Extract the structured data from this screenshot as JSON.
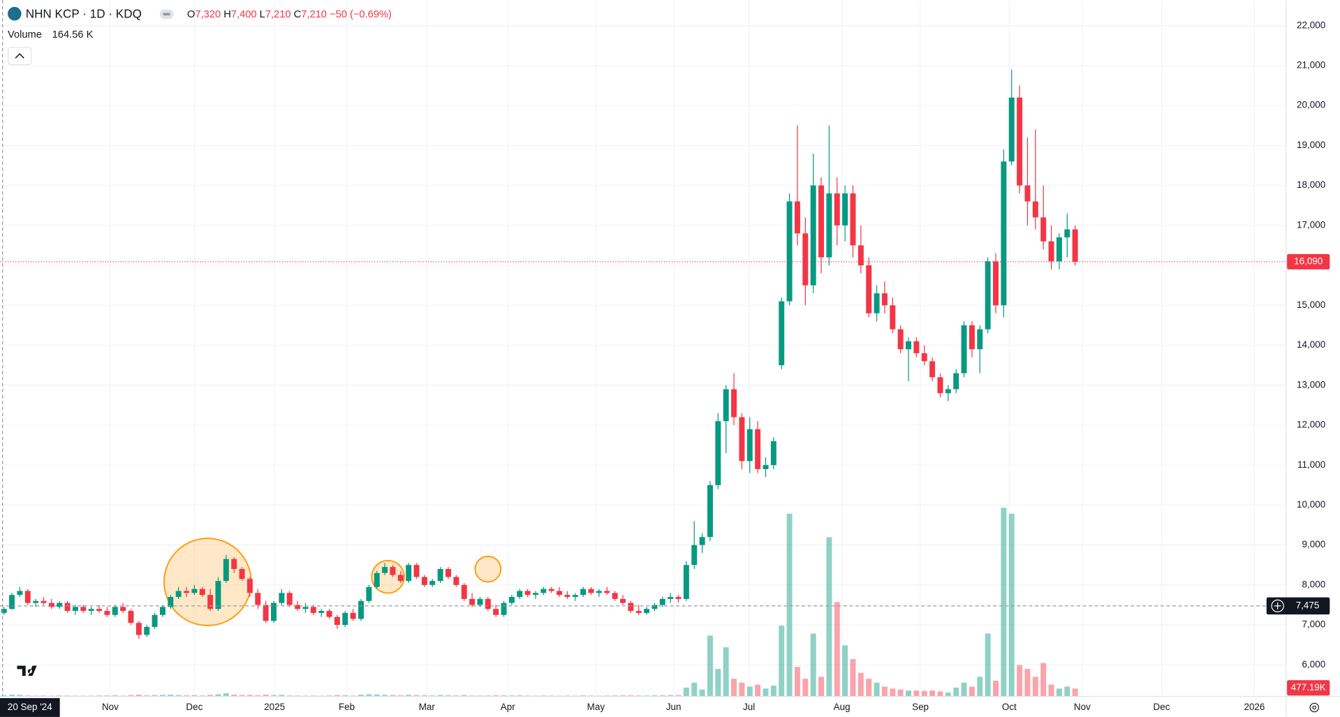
{
  "header": {
    "symbol": "NHN KCP · 1D · KDQ",
    "ohlc": [
      {
        "label": "O",
        "value": "7,320"
      },
      {
        "label": "H",
        "value": "7,400"
      },
      {
        "label": "L",
        "value": "7,210"
      },
      {
        "label": "C",
        "value": "7,210"
      }
    ],
    "change": "−50 (−0.69%)",
    "volume_label": "Volume",
    "volume_value": "164.56 K"
  },
  "chart_data": {
    "type": "candlestick",
    "up_color": "#089981",
    "down_color": "#f23645",
    "grid": true,
    "ylim": [
      5210,
      22640
    ],
    "yticks": [
      {
        "value": 6000,
        "label": "6,000"
      },
      {
        "value": 7000,
        "label": "7,000"
      },
      {
        "value": 8000,
        "label": "8,000"
      },
      {
        "value": 9000,
        "label": "9,000"
      },
      {
        "value": 10000,
        "label": "10,000"
      },
      {
        "value": 11000,
        "label": "11,000"
      },
      {
        "value": 12000,
        "label": "12,000"
      },
      {
        "value": 13000,
        "label": "13,000"
      },
      {
        "value": 14000,
        "label": "14,000"
      },
      {
        "value": 15000,
        "label": "15,000"
      },
      {
        "value": 16000,
        "label": "16,000"
      },
      {
        "value": 17000,
        "label": "17,000"
      },
      {
        "value": 18000,
        "label": "18,000"
      },
      {
        "value": 19000,
        "label": "19,000"
      },
      {
        "value": 20000,
        "label": "20,000"
      },
      {
        "value": 21000,
        "label": "21,000"
      },
      {
        "value": 22000,
        "label": "22,000"
      }
    ],
    "xlim": [
      -0.5,
      161.6
    ],
    "xticks": [
      {
        "value": 13.4,
        "label": "Nov"
      },
      {
        "value": 24,
        "label": "Dec"
      },
      {
        "value": 34.1,
        "label": "2025"
      },
      {
        "value": 43.2,
        "label": "Feb"
      },
      {
        "value": 53.3,
        "label": "Mar"
      },
      {
        "value": 63.5,
        "label": "Apr"
      },
      {
        "value": 74.6,
        "label": "May"
      },
      {
        "value": 84.4,
        "label": "Jun"
      },
      {
        "value": 93.9,
        "label": "Jul"
      },
      {
        "value": 105.6,
        "label": "Aug"
      },
      {
        "value": 115.5,
        "label": "Sep"
      },
      {
        "value": 126.7,
        "label": "Oct"
      },
      {
        "value": 135.9,
        "label": "Nov"
      },
      {
        "value": 145.9,
        "label": "Dec"
      },
      {
        "value": 157.6,
        "label": "2026"
      }
    ],
    "crosshair_date": "20 Sep '24",
    "last_price": {
      "value": 16090,
      "label": "16,090"
    },
    "crosshair_price": {
      "value": 7475,
      "label": "7,475"
    },
    "volume_readout": "477.19K",
    "volume_lim": [
      0,
      10000
    ],
    "ohlc": [
      [
        7300,
        7450,
        7250,
        7400
      ],
      [
        7400,
        7800,
        7380,
        7750
      ],
      [
        7750,
        7950,
        7700,
        7850
      ],
      [
        7850,
        7900,
        7500,
        7550
      ],
      [
        7550,
        7650,
        7450,
        7600
      ],
      [
        7600,
        7700,
        7500,
        7550
      ],
      [
        7550,
        7650,
        7400,
        7450
      ],
      [
        7450,
        7600,
        7400,
        7550
      ],
      [
        7550,
        7600,
        7300,
        7350
      ],
      [
        7350,
        7500,
        7250,
        7450
      ],
      [
        7450,
        7500,
        7300,
        7350
      ],
      [
        7350,
        7450,
        7250,
        7400
      ],
      [
        7400,
        7500,
        7300,
        7350
      ],
      [
        7350,
        7450,
        7200,
        7250
      ],
      [
        7250,
        7500,
        7200,
        7450
      ],
      [
        7450,
        7550,
        7300,
        7350
      ],
      [
        7350,
        7400,
        7000,
        7050
      ],
      [
        7050,
        7100,
        6650,
        6750
      ],
      [
        6750,
        7000,
        6700,
        6950
      ],
      [
        6950,
        7300,
        6900,
        7250
      ],
      [
        7250,
        7500,
        7200,
        7450
      ],
      [
        7450,
        7750,
        7400,
        7700
      ],
      [
        7700,
        7950,
        7650,
        7850
      ],
      [
        7850,
        7950,
        7700,
        7800
      ],
      [
        7800,
        8000,
        7750,
        7900
      ],
      [
        7900,
        7950,
        7700,
        7750
      ],
      [
        7750,
        7900,
        7350,
        7400
      ],
      [
        7400,
        8200,
        7350,
        8100
      ],
      [
        8100,
        8750,
        8050,
        8650
      ],
      [
        8650,
        8700,
        8300,
        8400
      ],
      [
        8400,
        8450,
        8100,
        8150
      ],
      [
        8150,
        8200,
        7700,
        7800
      ],
      [
        7800,
        7900,
        7400,
        7500
      ],
      [
        7500,
        7600,
        7050,
        7100
      ],
      [
        7100,
        7600,
        7050,
        7550
      ],
      [
        7550,
        7900,
        7500,
        7800
      ],
      [
        7800,
        7850,
        7450,
        7500
      ],
      [
        7500,
        7600,
        7350,
        7400
      ],
      [
        7400,
        7550,
        7300,
        7450
      ],
      [
        7450,
        7500,
        7250,
        7300
      ],
      [
        7300,
        7400,
        7200,
        7350
      ],
      [
        7350,
        7400,
        7150,
        7200
      ],
      [
        7200,
        7250,
        6900,
        7000
      ],
      [
        7000,
        7350,
        6950,
        7300
      ],
      [
        7300,
        7400,
        7100,
        7150
      ],
      [
        7150,
        7650,
        7100,
        7600
      ],
      [
        7600,
        8000,
        7550,
        7950
      ],
      [
        7950,
        8350,
        7900,
        8300
      ],
      [
        8300,
        8550,
        8250,
        8450
      ],
      [
        8450,
        8500,
        8200,
        8250
      ],
      [
        8250,
        8350,
        8050,
        8100
      ],
      [
        8100,
        8550,
        8050,
        8500
      ],
      [
        8500,
        8550,
        8150,
        8200
      ],
      [
        8200,
        8250,
        7950,
        8000
      ],
      [
        8000,
        8150,
        7950,
        8100
      ],
      [
        8100,
        8450,
        8050,
        8400
      ],
      [
        8400,
        8450,
        8150,
        8200
      ],
      [
        8200,
        8250,
        7950,
        8000
      ],
      [
        8000,
        8050,
        7600,
        7650
      ],
      [
        7650,
        7800,
        7450,
        7500
      ],
      [
        7500,
        7700,
        7450,
        7650
      ],
      [
        7650,
        7700,
        7350,
        7400
      ],
      [
        7400,
        7500,
        7200,
        7250
      ],
      [
        7250,
        7600,
        7200,
        7550
      ],
      [
        7550,
        7750,
        7500,
        7700
      ],
      [
        7700,
        7900,
        7650,
        7850
      ],
      [
        7850,
        7900,
        7700,
        7750
      ],
      [
        7750,
        7850,
        7650,
        7800
      ],
      [
        7800,
        7950,
        7750,
        7900
      ],
      [
        7900,
        7950,
        7800,
        7850
      ],
      [
        7850,
        7950,
        7700,
        7750
      ],
      [
        7750,
        7850,
        7650,
        7700
      ],
      [
        7700,
        7800,
        7600,
        7750
      ],
      [
        7750,
        7950,
        7700,
        7900
      ],
      [
        7900,
        7950,
        7750,
        7800
      ],
      [
        7800,
        7900,
        7700,
        7850
      ],
      [
        7850,
        7950,
        7750,
        7800
      ],
      [
        7800,
        7850,
        7600,
        7650
      ],
      [
        7650,
        7750,
        7500,
        7550
      ],
      [
        7550,
        7600,
        7300,
        7350
      ],
      [
        7350,
        7500,
        7250,
        7300
      ],
      [
        7300,
        7450,
        7250,
        7400
      ],
      [
        7400,
        7550,
        7350,
        7500
      ],
      [
        7500,
        7700,
        7450,
        7650
      ],
      [
        7650,
        7800,
        7550,
        7700
      ],
      [
        7700,
        7750,
        7550,
        7650
      ],
      [
        7650,
        8600,
        7600,
        8500
      ],
      [
        8500,
        9600,
        8400,
        9000
      ],
      [
        9000,
        9300,
        8800,
        9200
      ],
      [
        9200,
        10600,
        9100,
        10500
      ],
      [
        10500,
        12300,
        10400,
        12100
      ],
      [
        12100,
        13000,
        11300,
        12900
      ],
      [
        12900,
        13300,
        12000,
        12200
      ],
      [
        12200,
        12300,
        10900,
        11100
      ],
      [
        11100,
        12200,
        10800,
        11900
      ],
      [
        11900,
        12100,
        10800,
        10900
      ],
      [
        10900,
        11200,
        10700,
        11000
      ],
      [
        11000,
        11700,
        10900,
        11600
      ],
      [
        13500,
        15200,
        13400,
        15100
      ],
      [
        15100,
        17800,
        15000,
        17600
      ],
      [
        17600,
        19500,
        16500,
        16800
      ],
      [
        16800,
        17200,
        15000,
        15500
      ],
      [
        15500,
        18800,
        15300,
        18000
      ],
      [
        18000,
        18200,
        15800,
        16200
      ],
      [
        16200,
        19500,
        16000,
        17800
      ],
      [
        17800,
        18200,
        16500,
        17000
      ],
      [
        17000,
        18000,
        16600,
        17800
      ],
      [
        17800,
        18000,
        16200,
        16500
      ],
      [
        16500,
        17000,
        15800,
        16000
      ],
      [
        16000,
        16200,
        14700,
        14800
      ],
      [
        14800,
        15500,
        14600,
        15300
      ],
      [
        15300,
        15600,
        14800,
        15000
      ],
      [
        15000,
        15200,
        14300,
        14400
      ],
      [
        14400,
        14500,
        13800,
        13900
      ],
      [
        13900,
        14200,
        13100,
        14100
      ],
      [
        14100,
        14200,
        13700,
        13800
      ],
      [
        13800,
        14000,
        13500,
        13600
      ],
      [
        13600,
        13700,
        13100,
        13200
      ],
      [
        13200,
        13300,
        12700,
        12800
      ],
      [
        12800,
        13000,
        12600,
        12900
      ],
      [
        12900,
        13400,
        12800,
        13300
      ],
      [
        13300,
        14600,
        13200,
        14500
      ],
      [
        14500,
        14600,
        13700,
        13900
      ],
      [
        13900,
        14500,
        13300,
        14400
      ],
      [
        14400,
        16200,
        14300,
        16100
      ],
      [
        16100,
        16300,
        14800,
        15000
      ],
      [
        15000,
        18900,
        14700,
        18600
      ],
      [
        18600,
        20900,
        18500,
        20200
      ],
      [
        20200,
        20500,
        17800,
        18000
      ],
      [
        18000,
        19200,
        17000,
        17600
      ],
      [
        17600,
        19400,
        16900,
        17200
      ],
      [
        17200,
        18000,
        16400,
        16600
      ],
      [
        16600,
        17000,
        15900,
        16100
      ],
      [
        16100,
        16800,
        15900,
        16700
      ],
      [
        16700,
        17300,
        16200,
        16900
      ],
      [
        16900,
        17000,
        16000,
        16090
      ]
    ],
    "volume": [
      60,
      90,
      80,
      50,
      40,
      45,
      40,
      50,
      45,
      40,
      35,
      40,
      45,
      50,
      60,
      40,
      70,
      90,
      60,
      70,
      80,
      90,
      70,
      60,
      65,
      50,
      80,
      110,
      160,
      90,
      70,
      80,
      60,
      90,
      70,
      80,
      50,
      45,
      40,
      45,
      40,
      50,
      70,
      60,
      45,
      90,
      110,
      100,
      80,
      70,
      60,
      80,
      70,
      60,
      50,
      70,
      60,
      55,
      70,
      50,
      45,
      50,
      60,
      55,
      50,
      55,
      45,
      40,
      50,
      45,
      40,
      45,
      40,
      55,
      45,
      40,
      45,
      50,
      55,
      60,
      50,
      45,
      55,
      60,
      65,
      70,
      450,
      700,
      350,
      3100,
      1400,
      2500,
      900,
      700,
      500,
      600,
      400,
      550,
      3600,
      9300,
      1500,
      900,
      3200,
      1000,
      8100,
      4800,
      2600,
      1900,
      1200,
      900,
      700,
      500,
      400,
      350,
      300,
      300,
      280,
      300,
      250,
      200,
      450,
      700,
      500,
      1000,
      3200,
      800,
      9600,
      9300,
      1600,
      1400,
      1000,
      1700,
      600,
      400,
      500,
      400
    ]
  }
}
